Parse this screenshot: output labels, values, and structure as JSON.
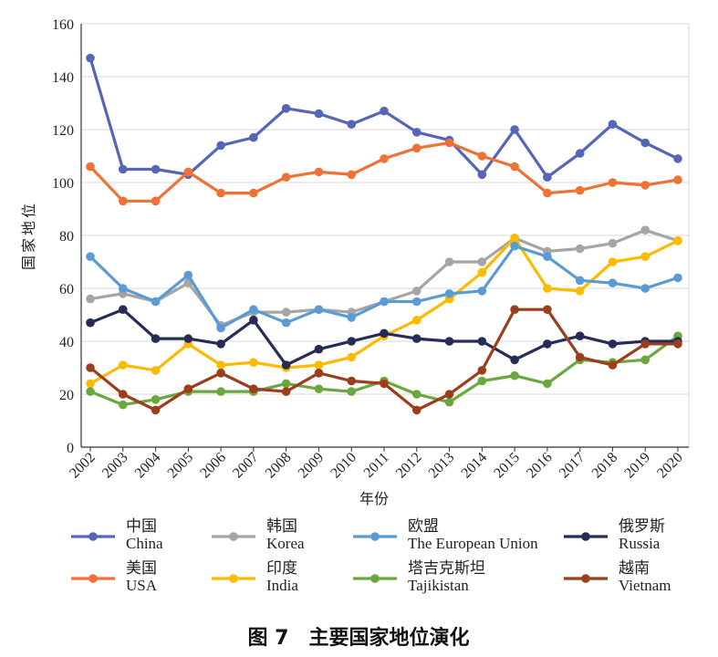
{
  "chart_data": {
    "type": "line",
    "title": "",
    "xlabel": "年份",
    "ylabel": "国家地位",
    "ylim": [
      0,
      160
    ],
    "yticks": [
      0,
      20,
      40,
      60,
      80,
      100,
      120,
      140,
      160
    ],
    "grid": true,
    "legend_position": "bottom",
    "categories": [
      "2002",
      "2003",
      "2004",
      "2005",
      "2006",
      "2007",
      "2008",
      "2009",
      "2010",
      "2011",
      "2012",
      "2013",
      "2014",
      "2015",
      "2016",
      "2017",
      "2018",
      "2019",
      "2020"
    ],
    "series": [
      {
        "name": "中国",
        "name_en": "China",
        "color": "#5566b8",
        "values": [
          147,
          105,
          105,
          103,
          114,
          117,
          128,
          126,
          122,
          127,
          119,
          116,
          103,
          120,
          102,
          111,
          122,
          115,
          109
        ]
      },
      {
        "name": "美国",
        "name_en": "USA",
        "color": "#ef7135",
        "values": [
          106,
          93,
          93,
          104,
          96,
          96,
          102,
          104,
          103,
          109,
          113,
          115,
          110,
          106,
          96,
          97,
          100,
          99,
          101
        ]
      },
      {
        "name": "韩国",
        "name_en": "Korea",
        "color": "#a5a5a5",
        "values": [
          56,
          58,
          55,
          62,
          46,
          51,
          51,
          52,
          51,
          55,
          59,
          70,
          70,
          79,
          74,
          75,
          77,
          82,
          78
        ]
      },
      {
        "name": "印度",
        "name_en": "India",
        "color": "#fcba00",
        "values": [
          24,
          31,
          29,
          39,
          31,
          32,
          30,
          31,
          34,
          42,
          48,
          56,
          66,
          79,
          60,
          59,
          70,
          72,
          78
        ]
      },
      {
        "name": "欧盟",
        "name_en": "The European Union",
        "color": "#5b9bd5",
        "values": [
          72,
          60,
          55,
          65,
          45,
          52,
          47,
          52,
          49,
          55,
          55,
          58,
          59,
          76,
          72,
          63,
          62,
          60,
          64
        ]
      },
      {
        "name": "塔吉克斯坦",
        "name_en": "Tajikistan",
        "color": "#6aa83e",
        "values": [
          21,
          16,
          18,
          21,
          21,
          21,
          24,
          22,
          21,
          25,
          20,
          17,
          25,
          27,
          24,
          33,
          32,
          33,
          42
        ]
      },
      {
        "name": "俄罗斯",
        "name_en": "Russia",
        "color": "#262c57",
        "values": [
          47,
          52,
          41,
          41,
          39,
          48,
          31,
          37,
          40,
          43,
          41,
          40,
          40,
          33,
          39,
          42,
          39,
          40,
          40
        ]
      },
      {
        "name": "越南",
        "name_en": "Vietnam",
        "color": "#9c3e1e",
        "values": [
          30,
          20,
          14,
          22,
          28,
          22,
          21,
          28,
          25,
          24,
          14,
          20,
          29,
          52,
          52,
          34,
          31,
          39,
          39
        ]
      }
    ],
    "caption": "图 7　主要国家地位演化"
  }
}
